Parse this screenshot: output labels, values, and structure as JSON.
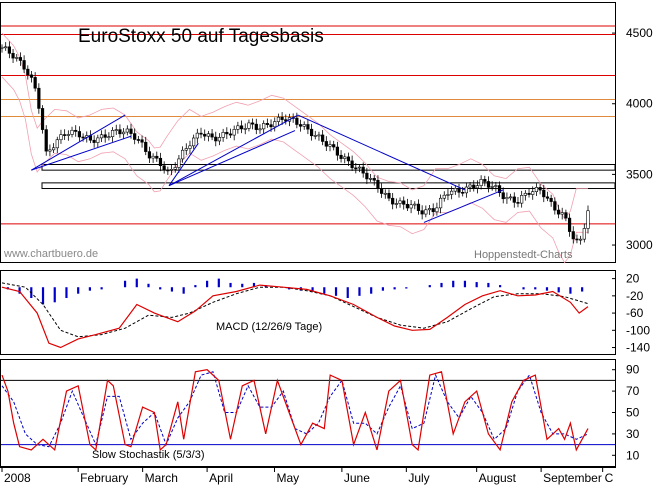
{
  "chart_data": [
    {
      "type": "candlestick",
      "title": "EuroStoxx 50 auf Tagesbasis",
      "watermark_left": "www.chartbuero.de",
      "watermark_right": "Hoppenstedt-Charts",
      "yticks": [
        3000,
        3500,
        4000,
        4500
      ],
      "ylim": [
        2880,
        4720
      ],
      "horizontal_levels": [
        {
          "value": 4550,
          "color": "#dd0000"
        },
        {
          "value": 4490,
          "color": "#dd0000"
        },
        {
          "value": 4200,
          "color": "#dd0000"
        },
        {
          "value": 4030,
          "color": "#e08a3c"
        },
        {
          "value": 3910,
          "color": "#e08a3c"
        },
        {
          "value": 3150,
          "color": "#dd0000"
        }
      ],
      "support_boxes": [
        {
          "low": 3530,
          "high": 3570
        },
        {
          "low": 3400,
          "high": 3440
        }
      ],
      "trendlines": [
        {
          "from": [
            0.05,
            3530
          ],
          "to": [
            0.22,
            3770
          ]
        },
        {
          "from": [
            0.05,
            3530
          ],
          "to": [
            0.21,
            3920
          ]
        },
        {
          "from": [
            0.285,
            3420
          ],
          "to": [
            0.335,
            3720
          ]
        },
        {
          "from": [
            0.285,
            3420
          ],
          "to": [
            0.5,
            3810
          ]
        },
        {
          "from": [
            0.285,
            3420
          ],
          "to": [
            0.505,
            3920
          ]
        },
        {
          "from": [
            0.505,
            3920
          ],
          "to": [
            0.79,
            3390
          ]
        },
        {
          "from": [
            0.72,
            3160
          ],
          "to": [
            0.855,
            3390
          ]
        }
      ],
      "close_path": [
        [
          0.0,
          4400
        ],
        [
          0.02,
          4340
        ],
        [
          0.04,
          4250
        ],
        [
          0.055,
          4130
        ],
        [
          0.065,
          3950
        ],
        [
          0.075,
          3640
        ],
        [
          0.09,
          3720
        ],
        [
          0.11,
          3800
        ],
        [
          0.13,
          3790
        ],
        [
          0.15,
          3740
        ],
        [
          0.17,
          3760
        ],
        [
          0.19,
          3800
        ],
        [
          0.21,
          3810
        ],
        [
          0.23,
          3760
        ],
        [
          0.25,
          3640
        ],
        [
          0.27,
          3580
        ],
        [
          0.285,
          3500
        ],
        [
          0.3,
          3600
        ],
        [
          0.32,
          3720
        ],
        [
          0.34,
          3800
        ],
        [
          0.36,
          3750
        ],
        [
          0.38,
          3780
        ],
        [
          0.4,
          3820
        ],
        [
          0.42,
          3850
        ],
        [
          0.44,
          3830
        ],
        [
          0.46,
          3860
        ],
        [
          0.48,
          3900
        ],
        [
          0.5,
          3880
        ],
        [
          0.52,
          3820
        ],
        [
          0.54,
          3760
        ],
        [
          0.56,
          3700
        ],
        [
          0.58,
          3620
        ],
        [
          0.6,
          3560
        ],
        [
          0.62,
          3500
        ],
        [
          0.64,
          3420
        ],
        [
          0.66,
          3320
        ],
        [
          0.68,
          3290
        ],
        [
          0.7,
          3280
        ],
        [
          0.72,
          3230
        ],
        [
          0.74,
          3260
        ],
        [
          0.76,
          3380
        ],
        [
          0.78,
          3380
        ],
        [
          0.8,
          3410
        ],
        [
          0.82,
          3450
        ],
        [
          0.84,
          3410
        ],
        [
          0.86,
          3330
        ],
        [
          0.88,
          3310
        ],
        [
          0.9,
          3380
        ],
        [
          0.92,
          3390
        ],
        [
          0.94,
          3270
        ],
        [
          0.96,
          3200
        ],
        [
          0.975,
          3050
        ],
        [
          0.985,
          3000
        ],
        [
          1.0,
          3240
        ]
      ]
    },
    {
      "type": "line",
      "label": "MACD (12/26/9 Tage)",
      "yticks": [
        20,
        -20,
        -60,
        -100,
        -140
      ],
      "ylim": [
        -155,
        40
      ],
      "macd": [
        [
          0.0,
          0
        ],
        [
          0.03,
          -10
        ],
        [
          0.06,
          -60
        ],
        [
          0.08,
          -130
        ],
        [
          0.1,
          -140
        ],
        [
          0.13,
          -120
        ],
        [
          0.16,
          -110
        ],
        [
          0.2,
          -95
        ],
        [
          0.23,
          -40
        ],
        [
          0.26,
          -60
        ],
        [
          0.28,
          -70
        ],
        [
          0.3,
          -80
        ],
        [
          0.33,
          -55
        ],
        [
          0.36,
          -20
        ],
        [
          0.4,
          -10
        ],
        [
          0.44,
          5
        ],
        [
          0.48,
          0
        ],
        [
          0.52,
          -5
        ],
        [
          0.56,
          -20
        ],
        [
          0.6,
          -40
        ],
        [
          0.64,
          -70
        ],
        [
          0.67,
          -90
        ],
        [
          0.7,
          -100
        ],
        [
          0.73,
          -98
        ],
        [
          0.76,
          -70
        ],
        [
          0.79,
          -40
        ],
        [
          0.82,
          -20
        ],
        [
          0.85,
          -8
        ],
        [
          0.88,
          -20
        ],
        [
          0.91,
          -18
        ],
        [
          0.94,
          -10
        ],
        [
          0.97,
          -35
        ],
        [
          0.985,
          -60
        ],
        [
          1.0,
          -45
        ]
      ],
      "signal": [
        [
          0.0,
          10
        ],
        [
          0.04,
          0
        ],
        [
          0.07,
          -40
        ],
        [
          0.1,
          -100
        ],
        [
          0.13,
          -115
        ],
        [
          0.17,
          -110
        ],
        [
          0.21,
          -95
        ],
        [
          0.25,
          -65
        ],
        [
          0.29,
          -70
        ],
        [
          0.32,
          -60
        ],
        [
          0.36,
          -35
        ],
        [
          0.4,
          -15
        ],
        [
          0.44,
          0
        ],
        [
          0.48,
          0
        ],
        [
          0.52,
          -8
        ],
        [
          0.56,
          -20
        ],
        [
          0.6,
          -45
        ],
        [
          0.64,
          -70
        ],
        [
          0.68,
          -88
        ],
        [
          0.72,
          -95
        ],
        [
          0.76,
          -80
        ],
        [
          0.8,
          -50
        ],
        [
          0.84,
          -22
        ],
        [
          0.88,
          -15
        ],
        [
          0.92,
          -15
        ],
        [
          0.96,
          -22
        ],
        [
          1.0,
          -38
        ]
      ],
      "histogram": [
        [
          0.01,
          -5
        ],
        [
          0.03,
          -15
        ],
        [
          0.05,
          -25
        ],
        [
          0.07,
          -40
        ],
        [
          0.09,
          -35
        ],
        [
          0.11,
          -25
        ],
        [
          0.13,
          -15
        ],
        [
          0.15,
          -8
        ],
        [
          0.17,
          -5
        ],
        [
          0.19,
          0
        ],
        [
          0.21,
          15
        ],
        [
          0.23,
          20
        ],
        [
          0.25,
          8
        ],
        [
          0.27,
          -5
        ],
        [
          0.29,
          -10
        ],
        [
          0.31,
          -15
        ],
        [
          0.33,
          5
        ],
        [
          0.35,
          15
        ],
        [
          0.37,
          20
        ],
        [
          0.39,
          10
        ],
        [
          0.41,
          8
        ],
        [
          0.43,
          10
        ],
        [
          0.45,
          5
        ],
        [
          0.47,
          0
        ],
        [
          0.49,
          -5
        ],
        [
          0.51,
          -8
        ],
        [
          0.53,
          -10
        ],
        [
          0.55,
          -15
        ],
        [
          0.57,
          -20
        ],
        [
          0.59,
          -25
        ],
        [
          0.61,
          -20
        ],
        [
          0.63,
          -15
        ],
        [
          0.65,
          -8
        ],
        [
          0.67,
          -5
        ],
        [
          0.69,
          -3
        ],
        [
          0.71,
          0
        ],
        [
          0.73,
          5
        ],
        [
          0.75,
          10
        ],
        [
          0.77,
          15
        ],
        [
          0.79,
          15
        ],
        [
          0.81,
          12
        ],
        [
          0.83,
          10
        ],
        [
          0.85,
          5
        ],
        [
          0.87,
          0
        ],
        [
          0.89,
          -5
        ],
        [
          0.91,
          -5
        ],
        [
          0.93,
          -8
        ],
        [
          0.95,
          -12
        ],
        [
          0.97,
          -15
        ],
        [
          0.99,
          -10
        ]
      ]
    },
    {
      "type": "line",
      "label": "Slow Stochastik (5/3/3)",
      "yticks": [
        90,
        70,
        50,
        30,
        10
      ],
      "ylim": [
        0,
        100
      ],
      "reference_lines": [
        80,
        20
      ],
      "k": [
        [
          0.0,
          85
        ],
        [
          0.01,
          70
        ],
        [
          0.02,
          40
        ],
        [
          0.03,
          18
        ],
        [
          0.05,
          15
        ],
        [
          0.07,
          25
        ],
        [
          0.09,
          15
        ],
        [
          0.11,
          70
        ],
        [
          0.13,
          75
        ],
        [
          0.15,
          20
        ],
        [
          0.16,
          15
        ],
        [
          0.18,
          80
        ],
        [
          0.19,
          75
        ],
        [
          0.21,
          20
        ],
        [
          0.22,
          18
        ],
        [
          0.24,
          55
        ],
        [
          0.26,
          50
        ],
        [
          0.27,
          15
        ],
        [
          0.28,
          20
        ],
        [
          0.3,
          60
        ],
        [
          0.31,
          25
        ],
        [
          0.33,
          88
        ],
        [
          0.35,
          90
        ],
        [
          0.37,
          80
        ],
        [
          0.39,
          25
        ],
        [
          0.41,
          75
        ],
        [
          0.43,
          80
        ],
        [
          0.45,
          30
        ],
        [
          0.47,
          80
        ],
        [
          0.49,
          50
        ],
        [
          0.51,
          20
        ],
        [
          0.53,
          40
        ],
        [
          0.55,
          35
        ],
        [
          0.56,
          85
        ],
        [
          0.58,
          80
        ],
        [
          0.6,
          20
        ],
        [
          0.62,
          50
        ],
        [
          0.64,
          15
        ],
        [
          0.66,
          70
        ],
        [
          0.68,
          80
        ],
        [
          0.7,
          20
        ],
        [
          0.71,
          15
        ],
        [
          0.73,
          85
        ],
        [
          0.75,
          88
        ],
        [
          0.77,
          30
        ],
        [
          0.79,
          60
        ],
        [
          0.81,
          70
        ],
        [
          0.83,
          30
        ],
        [
          0.85,
          15
        ],
        [
          0.87,
          60
        ],
        [
          0.89,
          80
        ],
        [
          0.91,
          85
        ],
        [
          0.93,
          25
        ],
        [
          0.95,
          35
        ],
        [
          0.96,
          25
        ],
        [
          0.97,
          40
        ],
        [
          0.98,
          15
        ],
        [
          1.0,
          35
        ]
      ],
      "d": [
        [
          0.0,
          75
        ],
        [
          0.02,
          60
        ],
        [
          0.04,
          30
        ],
        [
          0.06,
          20
        ],
        [
          0.08,
          18
        ],
        [
          0.1,
          40
        ],
        [
          0.12,
          70
        ],
        [
          0.14,
          45
        ],
        [
          0.16,
          20
        ],
        [
          0.18,
          65
        ],
        [
          0.2,
          65
        ],
        [
          0.22,
          25
        ],
        [
          0.24,
          40
        ],
        [
          0.26,
          50
        ],
        [
          0.28,
          20
        ],
        [
          0.3,
          45
        ],
        [
          0.32,
          60
        ],
        [
          0.34,
          85
        ],
        [
          0.36,
          88
        ],
        [
          0.38,
          50
        ],
        [
          0.4,
          50
        ],
        [
          0.42,
          75
        ],
        [
          0.44,
          55
        ],
        [
          0.46,
          55
        ],
        [
          0.48,
          70
        ],
        [
          0.5,
          35
        ],
        [
          0.52,
          30
        ],
        [
          0.54,
          40
        ],
        [
          0.56,
          65
        ],
        [
          0.58,
          80
        ],
        [
          0.6,
          40
        ],
        [
          0.62,
          40
        ],
        [
          0.64,
          30
        ],
        [
          0.66,
          55
        ],
        [
          0.68,
          75
        ],
        [
          0.7,
          35
        ],
        [
          0.72,
          40
        ],
        [
          0.74,
          85
        ],
        [
          0.76,
          60
        ],
        [
          0.78,
          45
        ],
        [
          0.8,
          65
        ],
        [
          0.82,
          50
        ],
        [
          0.84,
          25
        ],
        [
          0.86,
          35
        ],
        [
          0.88,
          70
        ],
        [
          0.9,
          85
        ],
        [
          0.92,
          50
        ],
        [
          0.94,
          30
        ],
        [
          0.96,
          30
        ],
        [
          0.98,
          25
        ],
        [
          1.0,
          30
        ]
      ]
    }
  ],
  "x_axis": {
    "labels": [
      {
        "pos": 0.0,
        "text": "2008"
      },
      {
        "pos": 0.13,
        "text": "February"
      },
      {
        "pos": 0.24,
        "text": "March"
      },
      {
        "pos": 0.35,
        "text": "April"
      },
      {
        "pos": 0.465,
        "text": "May"
      },
      {
        "pos": 0.58,
        "text": "June"
      },
      {
        "pos": 0.69,
        "text": "July"
      },
      {
        "pos": 0.81,
        "text": "August"
      },
      {
        "pos": 0.92,
        "text": "September"
      },
      {
        "pos": 1.025,
        "text": "C"
      }
    ]
  }
}
